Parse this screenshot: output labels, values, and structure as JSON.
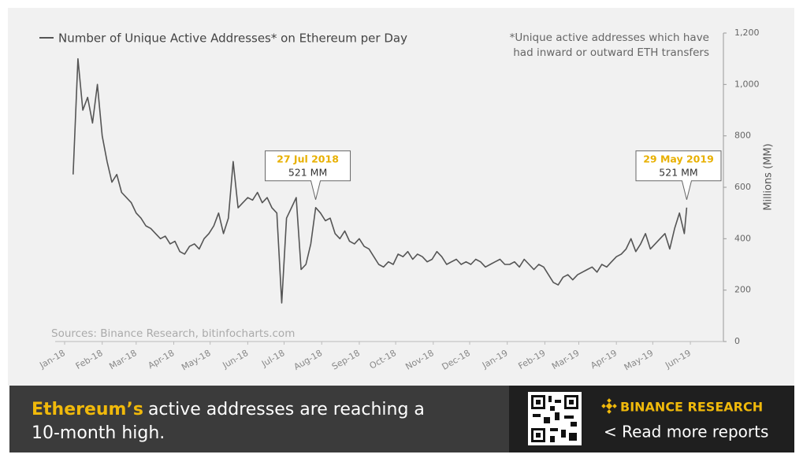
{
  "chart_data": {
    "type": "line",
    "title": "Number of Unique Active Addresses* on Ethereum per Day",
    "note": [
      "*Unique active addresses which have",
      "had inward or outward ETH transfers"
    ],
    "source": "Sources: Binance Research, bitinfocharts.com",
    "y_label": "Millions (MM)",
    "x": [
      7,
      11,
      15,
      19,
      23,
      27,
      31,
      35,
      39,
      43,
      47,
      51,
      55,
      59,
      63,
      67,
      71,
      75,
      79,
      83,
      87,
      91,
      95,
      99,
      103,
      107,
      111,
      115,
      119,
      123,
      127,
      131,
      135,
      139,
      143,
      147,
      151,
      155,
      159,
      163,
      167,
      171,
      175,
      179,
      183,
      187,
      191,
      195,
      199,
      203,
      207,
      211,
      215,
      219,
      223,
      227,
      231,
      235,
      239,
      243,
      247,
      251,
      255,
      259,
      263,
      267,
      271,
      275,
      279,
      283,
      287,
      291,
      295,
      299,
      303,
      307,
      311,
      315,
      319,
      323,
      327,
      331,
      335,
      339,
      343,
      347,
      351,
      355,
      359,
      363,
      367,
      371,
      375,
      379,
      383,
      387,
      391,
      395,
      399,
      403,
      407,
      411,
      415,
      419,
      423,
      427,
      431,
      435,
      439,
      443,
      447,
      451,
      455,
      459,
      463,
      467,
      471,
      475,
      479,
      483,
      487,
      491,
      495,
      499,
      503,
      507,
      511,
      513
    ],
    "series": [
      {
        "name": "Number of Unique Active Addresses* on Ethereum per Day",
        "color": "#555555",
        "values": [
          650,
          1100,
          900,
          950,
          850,
          1000,
          800,
          700,
          620,
          650,
          580,
          560,
          540,
          500,
          480,
          450,
          440,
          420,
          400,
          410,
          380,
          390,
          350,
          340,
          370,
          380,
          360,
          400,
          420,
          450,
          500,
          420,
          480,
          700,
          520,
          540,
          560,
          550,
          580,
          540,
          560,
          520,
          500,
          150,
          480,
          520,
          560,
          280,
          300,
          380,
          521,
          500,
          470,
          480,
          420,
          400,
          430,
          390,
          380,
          400,
          370,
          360,
          330,
          300,
          290,
          310,
          300,
          340,
          330,
          350,
          320,
          340,
          330,
          310,
          320,
          350,
          330,
          300,
          310,
          320,
          300,
          310,
          300,
          320,
          310,
          290,
          300,
          310,
          320,
          300,
          300,
          310,
          290,
          320,
          300,
          280,
          300,
          290,
          260,
          230,
          220,
          250,
          260,
          240,
          260,
          270,
          280,
          290,
          270,
          300,
          290,
          310,
          330,
          340,
          360,
          400,
          350,
          380,
          420,
          360,
          380,
          400,
          420,
          360,
          440,
          500,
          420,
          521
        ]
      }
    ],
    "annotations": [
      {
        "index": 50,
        "text": "27 Jul 2018",
        "value_label": "521 MM"
      },
      {
        "index": 127,
        "text": "29 May 2019",
        "value_label": "521 MM"
      }
    ],
    "xlim": [
      0,
      540
    ],
    "xticks": [
      {
        "value": 0,
        "label": "Jan-18"
      },
      {
        "value": 31,
        "label": "Feb-18"
      },
      {
        "value": 59,
        "label": "Mar-18"
      },
      {
        "value": 90,
        "label": "Apr-18"
      },
      {
        "value": 120,
        "label": "May-18"
      },
      {
        "value": 151,
        "label": "Jun-18"
      },
      {
        "value": 181,
        "label": "Jul-18"
      },
      {
        "value": 212,
        "label": "Aug-18"
      },
      {
        "value": 243,
        "label": "Sep-18"
      },
      {
        "value": 273,
        "label": "Oct-18"
      },
      {
        "value": 304,
        "label": "Nov-18"
      },
      {
        "value": 334,
        "label": "Dec-18"
      },
      {
        "value": 365,
        "label": "Jan-19"
      },
      {
        "value": 396,
        "label": "Feb-19"
      },
      {
        "value": 424,
        "label": "Mar-19"
      },
      {
        "value": 455,
        "label": "Apr-19"
      },
      {
        "value": 485,
        "label": "May-19"
      },
      {
        "value": 516,
        "label": "Jun-19"
      }
    ],
    "ylim": [
      0,
      1200
    ],
    "yticks": [
      0,
      200,
      400,
      600,
      800,
      {
        "value": 1000,
        "label": "1,000"
      },
      {
        "value": 1200,
        "label": "1,200"
      }
    ],
    "grid": false
  },
  "banner": {
    "highlight": "Ethereum’s",
    "lines": [
      "active addresses are reaching a",
      "10-month high."
    ],
    "brand": "BINANCE RESEARCH",
    "link": "< Read more reports"
  }
}
